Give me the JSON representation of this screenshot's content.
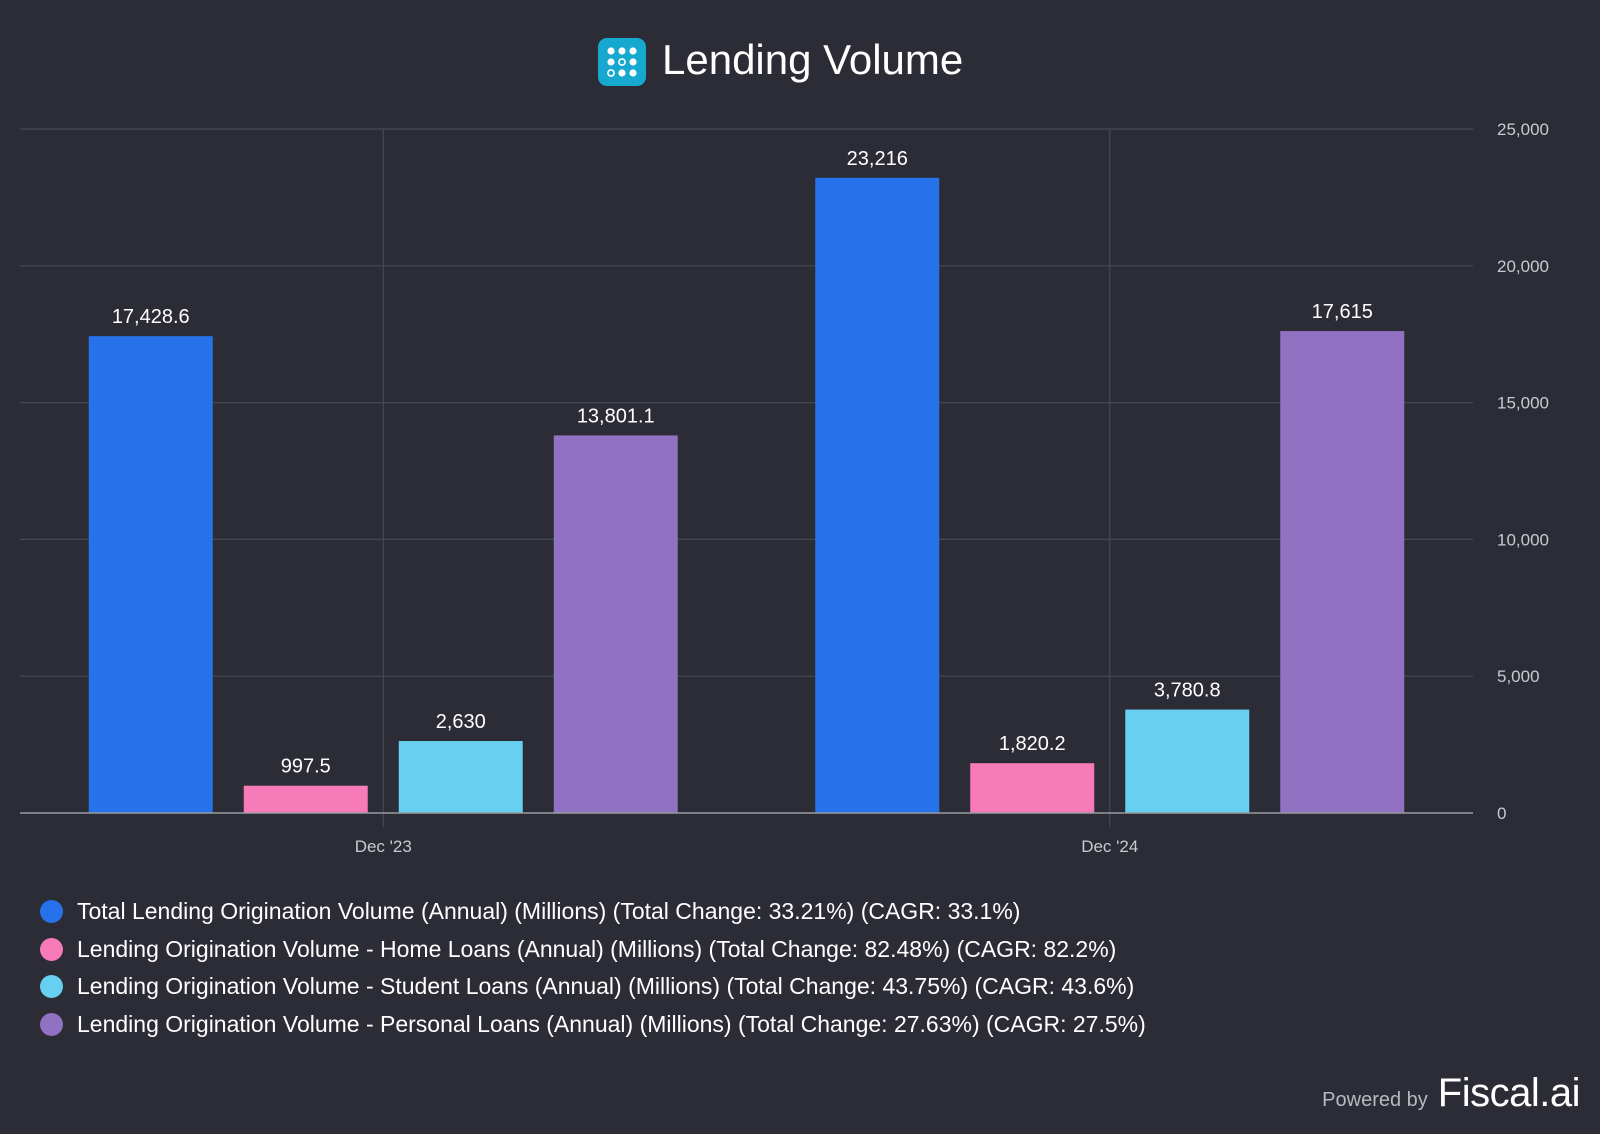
{
  "chart_data": {
    "type": "bar",
    "title": "Lending Volume",
    "categories": [
      "Dec '23",
      "Dec '24"
    ],
    "series": [
      {
        "name": "Total Lending Origination Volume (Annual) (Millions) (Total Change: 33.21%) (CAGR: 33.1%)",
        "color": "#2772ea",
        "values": [
          17428.6,
          23216
        ],
        "labels": [
          "17,428.6",
          "23,216"
        ]
      },
      {
        "name": "Lending Origination Volume - Home Loans (Annual) (Millions) (Total Change: 82.48%) (CAGR: 82.2%)",
        "color": "#f87bb9",
        "values": [
          997.5,
          1820.2
        ],
        "labels": [
          "997.5",
          "1,820.2"
        ]
      },
      {
        "name": "Lending Origination Volume - Student Loans (Annual) (Millions) (Total Change: 43.75%) (CAGR: 43.6%)",
        "color": "#67cff0",
        "values": [
          2630,
          3780.8
        ],
        "labels": [
          "2,630",
          "3,780.8"
        ]
      },
      {
        "name": "Lending Origination Volume - Personal Loans (Annual) (Millions) (Total Change: 27.63%) (CAGR: 27.5%)",
        "color": "#9171c2",
        "values": [
          13801.1,
          17615
        ],
        "labels": [
          "13,801.1",
          "17,615"
        ]
      }
    ],
    "ylim": [
      0,
      25000
    ],
    "yticks": [
      0,
      5000,
      10000,
      15000,
      20000,
      25000
    ],
    "ytick_labels": [
      "0",
      "5,000",
      "10,000",
      "15,000",
      "20,000",
      "25,000"
    ],
    "y_axis_side": "right",
    "grid": true,
    "legend_position": "bottom-left"
  },
  "footer": {
    "powered_by": "Powered by",
    "brand": "Fiscal.ai"
  },
  "colors": {
    "background": "#2b2c35",
    "grid": "#464853",
    "logo": "#16a8cf"
  },
  "icons": {
    "title_logo": "company-logo-icon"
  }
}
